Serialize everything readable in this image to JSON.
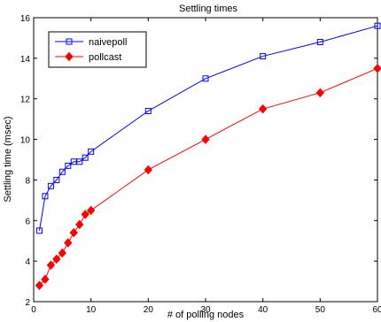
{
  "chart_data": {
    "type": "line",
    "title": "Settling times",
    "xlabel": "# of polling nodes",
    "ylabel": "Settling time (msec)",
    "xlim": [
      0,
      60
    ],
    "ylim": [
      2,
      16
    ],
    "xticks": [
      0,
      10,
      20,
      30,
      40,
      50,
      60
    ],
    "yticks": [
      2,
      4,
      6,
      8,
      10,
      12,
      14,
      16
    ],
    "grid": false,
    "legend_position": "top-left",
    "series": [
      {
        "name": "naivepoll",
        "color": "#0000ff",
        "marker": "square",
        "x": [
          1,
          2,
          3,
          4,
          5,
          6,
          7,
          8,
          9,
          10,
          20,
          30,
          40,
          50,
          60
        ],
        "y": [
          5.5,
          7.2,
          7.7,
          8.0,
          8.4,
          8.7,
          8.9,
          8.9,
          9.1,
          9.4,
          11.4,
          13.0,
          14.1,
          14.8,
          15.6
        ]
      },
      {
        "name": "pollcast",
        "color": "#ff0000",
        "marker": "diamond",
        "x": [
          1,
          2,
          3,
          4,
          5,
          6,
          7,
          8,
          9,
          10,
          20,
          30,
          40,
          50,
          60
        ],
        "y": [
          2.8,
          3.1,
          3.8,
          4.1,
          4.4,
          4.9,
          5.4,
          5.8,
          6.3,
          6.5,
          8.5,
          10.0,
          11.5,
          12.3,
          13.5
        ]
      }
    ]
  }
}
